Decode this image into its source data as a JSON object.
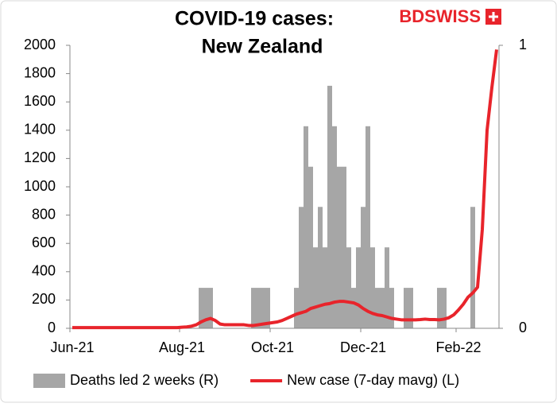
{
  "chart_data": {
    "type": "bar-line",
    "title": "COVID-19 cases:",
    "subtitle": "New Zealand",
    "logo": "BDSWISS",
    "categories": [
      "Jun-21",
      null,
      null,
      null,
      null,
      null,
      null,
      null,
      null,
      null,
      null,
      null,
      null,
      null,
      null,
      null,
      null,
      null,
      null,
      null,
      null,
      null,
      null,
      "Aug-21",
      null,
      null,
      null,
      null,
      null,
      null,
      null,
      null,
      null,
      null,
      null,
      null,
      null,
      null,
      null,
      null,
      null,
      null,
      "Oct-21",
      null,
      null,
      null,
      null,
      null,
      null,
      null,
      null,
      null,
      null,
      null,
      null,
      null,
      null,
      null,
      null,
      null,
      null,
      "Dec-21",
      null,
      null,
      null,
      null,
      null,
      null,
      null,
      null,
      null,
      null,
      null,
      null,
      null,
      null,
      null,
      null,
      null,
      null,
      null,
      "Feb-22",
      null,
      null,
      null,
      null,
      null,
      null,
      null,
      null
    ],
    "series": [
      {
        "name": "Deaths led 2 weeks (R)",
        "color": "#a6a6a6",
        "axis": "y2",
        "kind": "bar",
        "values": [
          0,
          0,
          0,
          0,
          0,
          0,
          0,
          0,
          0,
          0,
          0,
          0,
          0,
          0,
          0,
          0,
          0,
          0,
          0,
          0,
          0,
          0,
          0,
          0,
          0,
          0,
          0,
          0.143,
          0.143,
          0.143,
          0,
          0,
          0,
          0,
          0,
          0,
          0,
          0,
          0.143,
          0.143,
          0.143,
          0.143,
          0,
          0,
          0,
          0,
          0,
          0.143,
          0.429,
          0.714,
          0.571,
          0.286,
          0.429,
          0.286,
          0.857,
          0.714,
          0.571,
          0.571,
          0.286,
          0.143,
          0.286,
          0.429,
          0.714,
          0.286,
          0.143,
          0.143,
          0.286,
          0.143,
          0,
          0,
          0.143,
          0.143,
          0,
          0,
          0,
          0,
          0,
          0.143,
          0.143,
          0,
          0,
          0,
          0,
          0,
          0.429,
          0,
          0,
          0,
          0,
          0
        ]
      },
      {
        "name": "New case (7-day mavg) (L)",
        "color": "#e8242b",
        "axis": "y",
        "kind": "line",
        "values": [
          5,
          5,
          5,
          5,
          5,
          5,
          5,
          5,
          5,
          5,
          5,
          5,
          5,
          5,
          5,
          5,
          5,
          5,
          5,
          5,
          5,
          5,
          5,
          8,
          10,
          15,
          25,
          45,
          60,
          70,
          55,
          30,
          25,
          25,
          25,
          25,
          25,
          20,
          20,
          25,
          30,
          35,
          40,
          45,
          55,
          70,
          85,
          100,
          110,
          120,
          140,
          150,
          160,
          170,
          175,
          185,
          190,
          190,
          185,
          180,
          165,
          140,
          120,
          105,
          95,
          90,
          80,
          70,
          65,
          60,
          60,
          60,
          60,
          62,
          65,
          62,
          62,
          60,
          65,
          75,
          95,
          130,
          170,
          220,
          250,
          290,
          700,
          1400,
          1700,
          1970
        ]
      }
    ],
    "ylim": [
      0,
      2000
    ],
    "yticks": [
      0,
      200,
      400,
      600,
      800,
      1000,
      1200,
      1400,
      1600,
      1800,
      2000
    ],
    "y2lim": [
      0,
      1
    ],
    "y2ticks": [
      0,
      1
    ],
    "grid": false,
    "legend": "bottom"
  }
}
